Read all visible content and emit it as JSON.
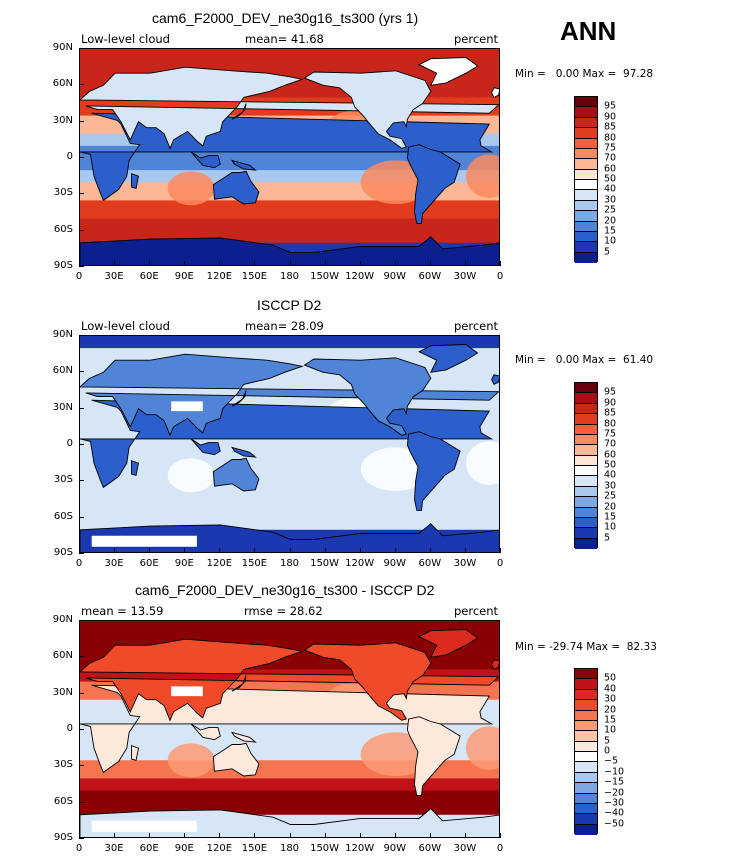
{
  "season": "ANN",
  "panels": [
    {
      "title": "cam6_F2000_DEV_ne30g16_ts300 (yrs 1)",
      "left_label": "Low-level cloud",
      "center_label": "mean=  41.68",
      "right_label": "percent",
      "minmax": "Min =   0.00 Max =  97.28",
      "kind": "model"
    },
    {
      "title": "ISCCP D2",
      "left_label": "Low-level cloud",
      "center_label": "mean=  28.09",
      "right_label": "percent",
      "minmax": "Min =   0.00 Max =  61.40",
      "kind": "obs"
    },
    {
      "title": "cam6_F2000_DEV_ne30g16_ts300 - ISCCP D2",
      "left_label": "mean =  13.59",
      "center_label": "rmse =  28.62",
      "right_label": "percent",
      "minmax": "Min = -29.74 Max =  82.33",
      "kind": "diff"
    }
  ],
  "lat_ticks": [
    "90N",
    "60N",
    "30N",
    "0",
    "30S",
    "60S",
    "90S"
  ],
  "lon_ticks": [
    "0",
    "30E",
    "60E",
    "90E",
    "120E",
    "150E",
    "180",
    "150W",
    "120W",
    "90W",
    "60W",
    "30W",
    "0"
  ],
  "abs_levels": [
    "95",
    "90",
    "85",
    "80",
    "75",
    "70",
    "60",
    "50",
    "40",
    "30",
    "25",
    "20",
    "15",
    "10",
    "5"
  ],
  "abs_colors": [
    "#67000d",
    "#a50f15",
    "#c8261a",
    "#e23b1d",
    "#f2603a",
    "#fb8a5f",
    "#fcb896",
    "#fde6d6",
    "#ffffff",
    "#d6e6f6",
    "#a9c8ee",
    "#7da8e2",
    "#4f84d6",
    "#2c5fcb",
    "#1a38b0",
    "#0b1f8e"
  ],
  "diff_levels": [
    "50",
    "40",
    "30",
    "20",
    "15",
    "10",
    "5",
    "0",
    "−5",
    "−10",
    "−15",
    "−20",
    "−30",
    "−40",
    "−50"
  ],
  "diff_colors": [
    "#8b0000",
    "#c1121a",
    "#dc2a1e",
    "#ef4b2a",
    "#f77450",
    "#fb9b76",
    "#fdc4a6",
    "#fde8dc",
    "#ffffff",
    "#d6e6f6",
    "#a9c8ee",
    "#7da8e2",
    "#4f84d6",
    "#2c5fcb",
    "#1a38b0",
    "#0b1f8e"
  ]
}
